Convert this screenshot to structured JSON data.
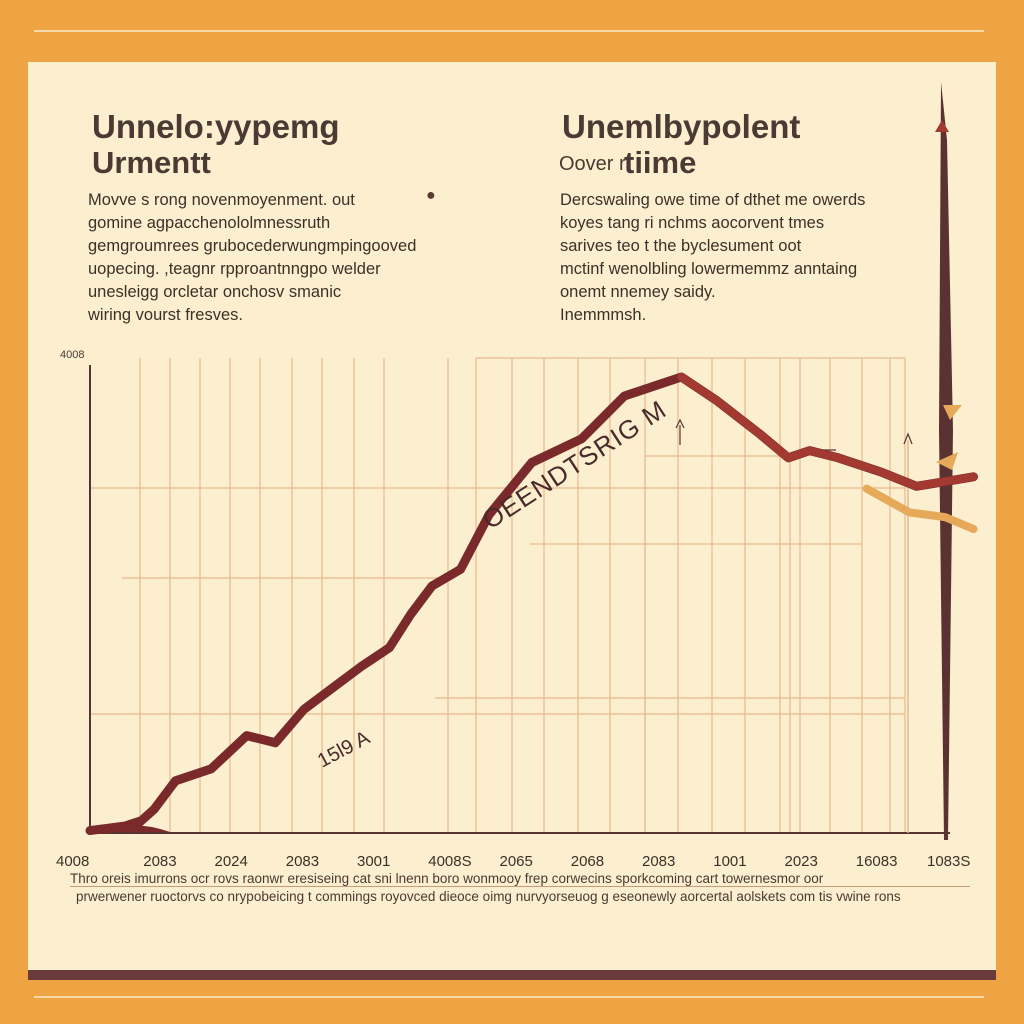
{
  "header": {
    "left_title_line1": "Unnelo:yypemg",
    "left_title_line2": "Urmentt",
    "right_title_line1": "Unemlbypolent",
    "right_subtitle": "Oover r",
    "right_title_line2": "tiime"
  },
  "description_left": [
    "Movve s rong novenmoyenment. out",
    "gomine agpacchenololmnessruth",
    "gemgroumrees grubocederwungmpingooved",
    "uopecing. ,teagnr rpproantnngpo welder",
    "unesleigg orcletar onchosv smanic",
    "wiring vourst fresves."
  ],
  "description_right": [
    "Dercswaling owe time of dthet me owerds",
    "koyes tang ri nchms aocorvent tmes",
    "sarives teo t the byclesument oot",
    "mctinf wenolbling lowermemmz anntaing",
    "onemt nnemey saidy.",
    "Inemmmsh."
  ],
  "footer": {
    "line1": "Thro oreis imurrons ocr rovs raonwr eresiseing cat sni lnenn boro wonmooy frep corwecins sporkcoming cart towernesmor oor",
    "line2": "prwerwener ruoctorvs co nrypobeicing t commings royovced dieoce oimg nurvyorseuog g eseonewly aorcertal aolskets com tis vwine rons"
  },
  "chart_data": {
    "type": "line",
    "title": "Unnelo:yypemg Urmentt",
    "xlabel": "",
    "ylabel": "",
    "y_top_tick": "4008",
    "x_tick_labels": [
      "4008",
      "2083",
      "2024",
      "2083",
      "3001",
      "4008S",
      "2065",
      "2068",
      "2083",
      "1001",
      "2023",
      "16083",
      "1083S"
    ],
    "annotations": [
      "OEENDTSRIG M",
      "15l9 A"
    ],
    "grid": true,
    "accent_colors": {
      "line": "#7A2A2A",
      "line_fade": "#A33A32",
      "secondary": "#E6A95A",
      "axis": "#5B3232",
      "grid": "#E8B98E"
    },
    "ylim": [
      0,
      100
    ],
    "series": [
      {
        "values": [
          [
            0,
            0.5
          ],
          [
            0.5,
            1.5
          ],
          [
            0.7,
            2.5
          ],
          [
            0.6,
            1.0
          ],
          [
            0.9,
            5.0
          ],
          [
            1.2,
            11.0
          ],
          [
            1.7,
            13.5
          ],
          [
            2.2,
            20.5
          ],
          [
            2.6,
            19.0
          ],
          [
            3.0,
            26.0
          ],
          [
            3.4,
            30.5
          ],
          [
            3.8,
            35.0
          ],
          [
            4.2,
            39.0
          ],
          [
            4.5,
            46.0
          ],
          [
            4.8,
            52.0
          ],
          [
            5.2,
            55.5
          ],
          [
            5.6,
            67.0
          ],
          [
            6.2,
            78.0
          ],
          [
            6.9,
            83.0
          ],
          [
            7.5,
            92.0
          ],
          [
            7.9,
            94.0
          ],
          [
            8.3,
            96.0
          ],
          [
            8.8,
            91.0
          ],
          [
            9.4,
            84.0
          ],
          [
            9.8,
            79.0
          ],
          [
            10.1,
            80.5
          ],
          [
            10.5,
            79.0
          ],
          [
            11.1,
            76.0
          ],
          [
            11.6,
            73.0
          ],
          [
            12.0,
            74.0
          ],
          [
            12.4,
            75.0
          ]
        ]
      },
      {
        "values": [
          [
            10.9,
            72.5
          ],
          [
            11.5,
            67.5
          ],
          [
            12.0,
            66.5
          ],
          [
            12.4,
            64.0
          ]
        ]
      }
    ]
  }
}
